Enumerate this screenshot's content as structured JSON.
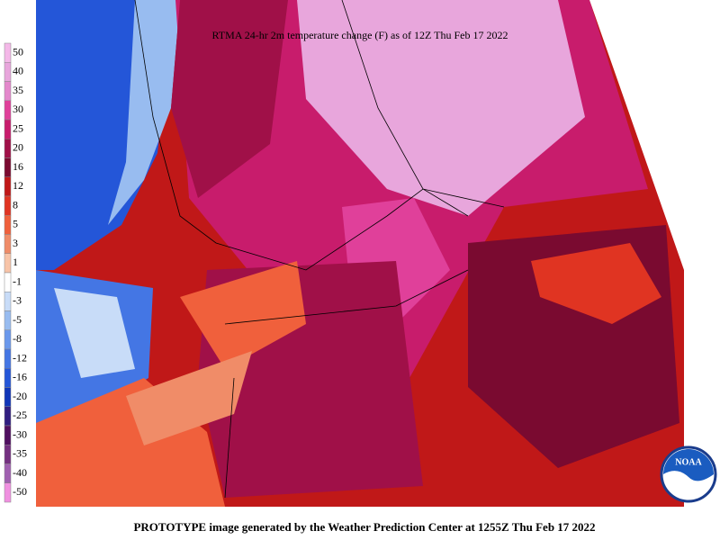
{
  "title": "RTMA 24-hr 2m temperature change (F) as of 12Z Thu Feb 17 2022",
  "footer": "PROTOTYPE image generated by the Weather Prediction Center at 1255Z Thu Feb 17 2022",
  "logo": "NOAA",
  "colorbar": [
    {
      "value": 50,
      "color": "#f4b8e8"
    },
    {
      "value": 40,
      "color": "#e8a6dc"
    },
    {
      "value": 35,
      "color": "#e488cc"
    },
    {
      "value": 30,
      "color": "#e0409a"
    },
    {
      "value": 25,
      "color": "#c81c6c"
    },
    {
      "value": 20,
      "color": "#a01048"
    },
    {
      "value": 16,
      "color": "#7a0a30"
    },
    {
      "value": 12,
      "color": "#c01818"
    },
    {
      "value": 8,
      "color": "#e03422"
    },
    {
      "value": 5,
      "color": "#f0603c"
    },
    {
      "value": 3,
      "color": "#f08c68"
    },
    {
      "value": 1,
      "color": "#f8c4a8"
    },
    {
      "value": -1,
      "color": "#ffffff"
    },
    {
      "value": -3,
      "color": "#c8dcf8"
    },
    {
      "value": -5,
      "color": "#98bcf0"
    },
    {
      "value": -8,
      "color": "#6a98ec"
    },
    {
      "value": -12,
      "color": "#4476e4"
    },
    {
      "value": -16,
      "color": "#2456d8"
    },
    {
      "value": -20,
      "color": "#1036b8"
    },
    {
      "value": -25,
      "color": "#301e80"
    },
    {
      "value": -30,
      "color": "#501060"
    },
    {
      "value": -35,
      "color": "#743080"
    },
    {
      "value": -40,
      "color": "#a060b0"
    },
    {
      "value": -50,
      "color": "#f090e0"
    }
  ]
}
